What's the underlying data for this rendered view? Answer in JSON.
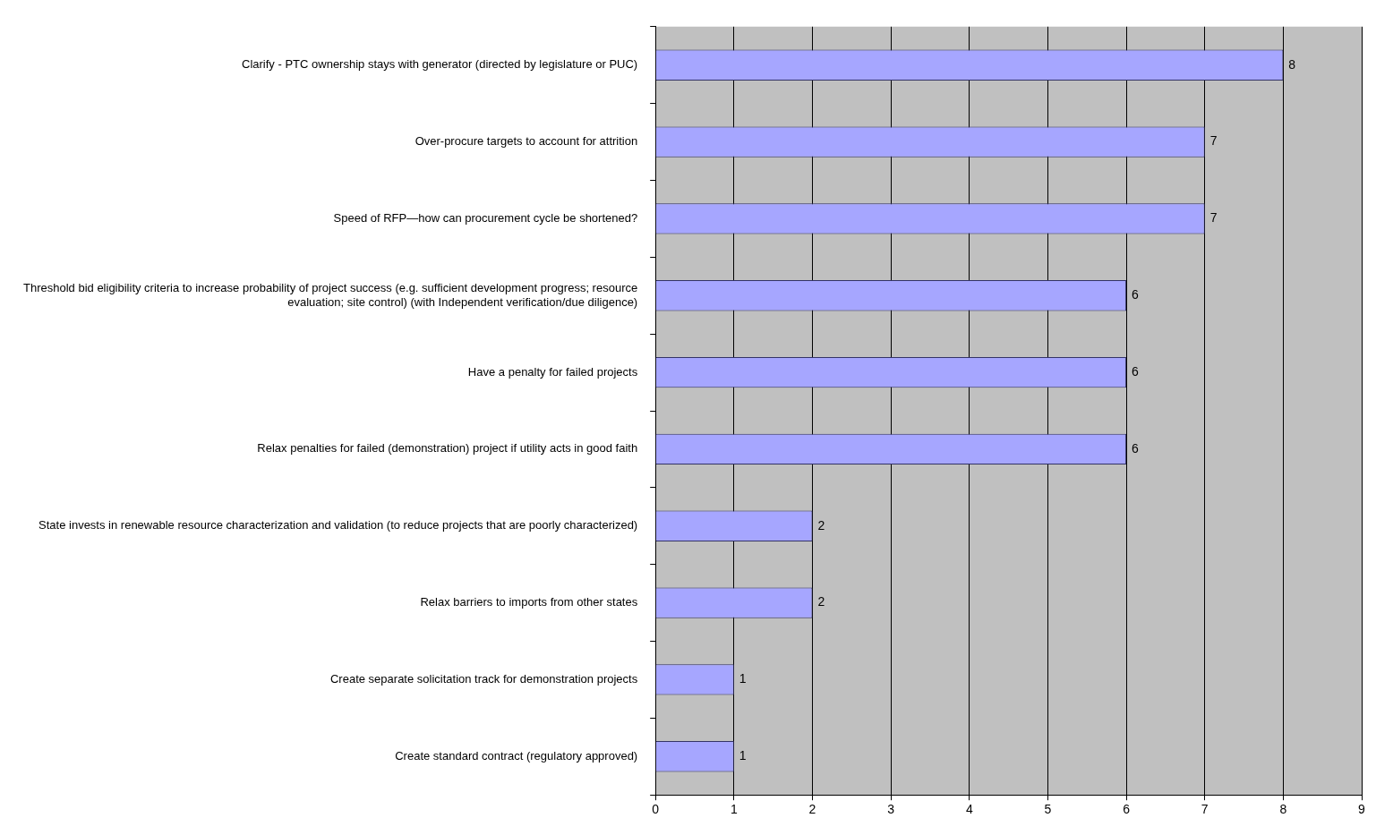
{
  "chart_data": {
    "type": "bar",
    "orientation": "horizontal",
    "categories": [
      "Clarify - PTC ownership stays with generator (directed by legislature or PUC)",
      "Over-procure targets to account for attrition",
      "Speed of RFP—how can procurement cycle be shortened?",
      "Threshold bid eligibility criteria to increase probability of project success (e.g. sufficient development progress; resource evaluation; site control) (with Independent verification/due diligence)",
      "Have a penalty for failed projects",
      "Relax penalties for failed (demonstration) project if utility acts in good faith",
      "State invests in renewable resource characterization and validation (to reduce projects that are poorly characterized)",
      "Relax barriers to imports from other states",
      "Create separate solicitation track for demonstration projects",
      "Create standard contract (regulatory approved)"
    ],
    "values": [
      8,
      7,
      7,
      6,
      6,
      6,
      2,
      2,
      1,
      1
    ],
    "color": "#a6a6ff",
    "xlim": [
      0,
      9
    ],
    "xticks": [
      0,
      1,
      2,
      3,
      4,
      5,
      6,
      7,
      8,
      9
    ],
    "grid": "x",
    "data_labels": true
  }
}
